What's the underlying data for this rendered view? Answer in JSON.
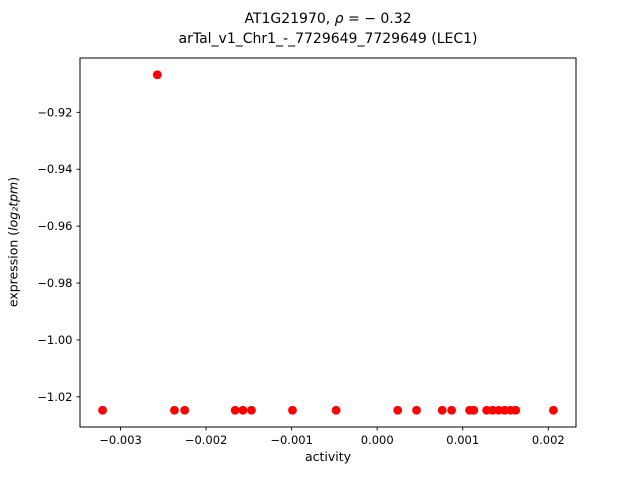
{
  "figure": {
    "title_prefix": "AT1G21970, ",
    "title_rho": "ρ",
    "title_rest": " = − 0.32",
    "subtitle": "arTal_v1_Chr1_-_7729649_7729649 (LEC1)",
    "xlabel": "activity",
    "ylabel_prefix": "expression (",
    "ylabel_math": "log₂tpm",
    "ylabel_suffix": ")"
  },
  "chart_data": {
    "type": "scatter",
    "title": "AT1G21970, ρ = − 0.32",
    "subtitle": "arTal_v1_Chr1_-_7729649_7729649 (LEC1)",
    "xlabel": "activity",
    "ylabel": "expression (log2 tpm)",
    "correlation_rho": -0.32,
    "grid": false,
    "xlim": [
      -0.003474,
      0.002324
    ],
    "ylim": [
      -1.0306,
      -0.9009
    ],
    "xticks": [
      -0.003,
      -0.002,
      -0.001,
      0,
      0.001,
      0.002
    ],
    "xtick_labels": [
      "−0.003",
      "−0.002",
      "−0.001",
      "0.000",
      "0.001",
      "0.002"
    ],
    "yticks": [
      -0.92,
      -0.94,
      -0.96,
      -0.98,
      -1.0,
      -1.02
    ],
    "ytick_labels": [
      "−0.92",
      "−0.94",
      "−0.96",
      "−0.98",
      "−1.00",
      "−1.02"
    ],
    "marker_color": "#ff0000",
    "marker_radius_px": 4.4,
    "points": [
      [
        -0.00321,
        -1.0247
      ],
      [
        -0.00257,
        -0.9068
      ],
      [
        -0.00237,
        -1.0247
      ],
      [
        -0.00225,
        -1.0247
      ],
      [
        -0.00166,
        -1.0247
      ],
      [
        -0.00157,
        -1.0247
      ],
      [
        -0.00147,
        -1.0247
      ],
      [
        -0.00099,
        -1.0247
      ],
      [
        -0.00048,
        -1.0247
      ],
      [
        0.00024,
        -1.0247
      ],
      [
        0.00046,
        -1.0247
      ],
      [
        0.00076,
        -1.0247
      ],
      [
        0.00087,
        -1.0247
      ],
      [
        0.00108,
        -1.0247
      ],
      [
        0.00113,
        -1.0247
      ],
      [
        0.00128,
        -1.0247
      ],
      [
        0.00135,
        -1.0247
      ],
      [
        0.00142,
        -1.0247
      ],
      [
        0.00149,
        -1.0247
      ],
      [
        0.00156,
        -1.0247
      ],
      [
        0.00162,
        -1.0247
      ],
      [
        0.00206,
        -1.0247
      ]
    ]
  }
}
